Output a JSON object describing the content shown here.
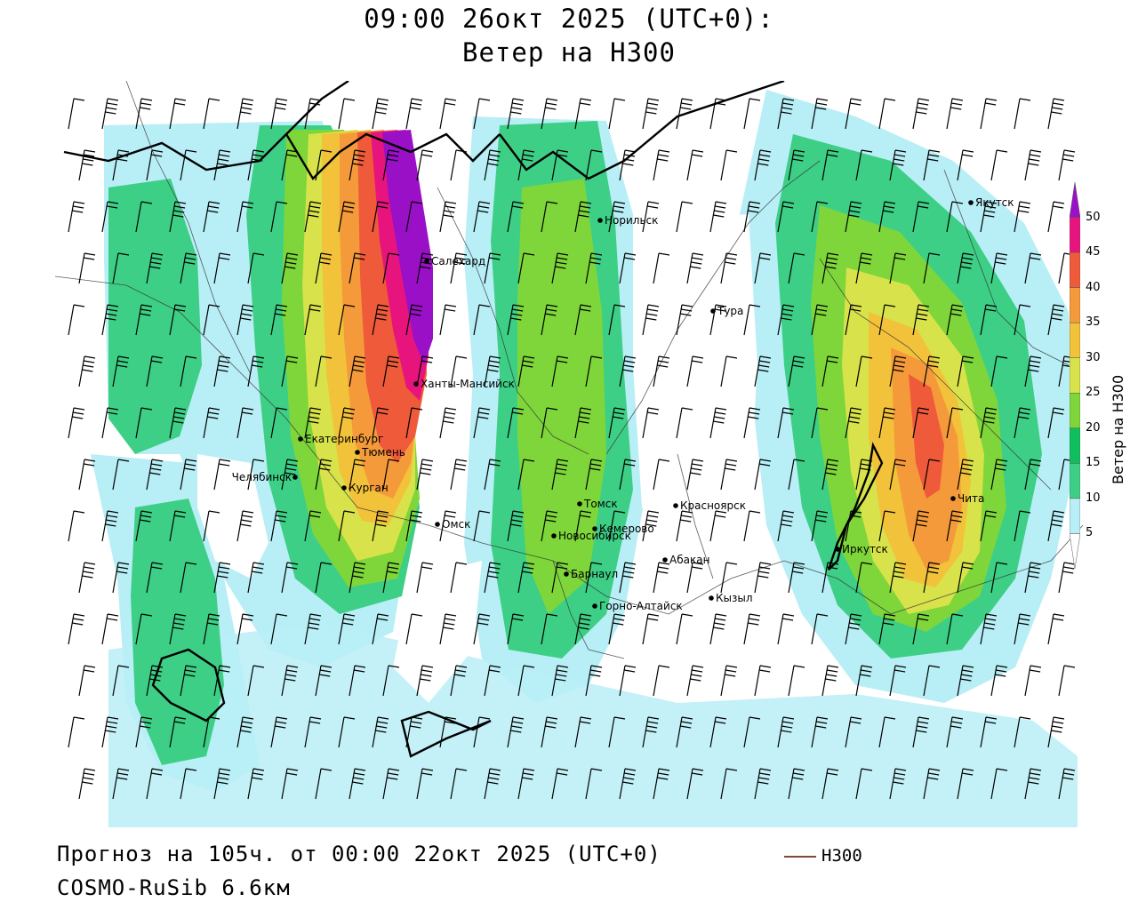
{
  "header": {
    "line1": "09:00 26окт 2025 (UTC+0):",
    "line2": "Ветер на H300"
  },
  "footer": {
    "line1": "Прогноз на 105ч. от 00:00 22окт 2025 (UTC+0)",
    "line2": "COSMO-RuSib 6.6км"
  },
  "legend": {
    "line_label": "H300",
    "line_color": "#7a4a3a"
  },
  "colorbar": {
    "label": "Ветер на H300",
    "ticks": [
      "5",
      "10",
      "15",
      "20",
      "25",
      "30",
      "35",
      "40",
      "45",
      "50"
    ],
    "colors": [
      "#ffffff",
      "#b8eef6",
      "#3ecf86",
      "#0fbf5e",
      "#7ed63a",
      "#d8e24a",
      "#f2c23a",
      "#f49a3a",
      "#ee5a3a",
      "#e8147e",
      "#9a10c6"
    ]
  },
  "cities": [
    {
      "name": "Норильск"
    },
    {
      "name": "Якутск"
    },
    {
      "name": "Салехард"
    },
    {
      "name": "Тура"
    },
    {
      "name": "Ханты-Мансийск"
    },
    {
      "name": "Екатеринбург"
    },
    {
      "name": "Тюмень"
    },
    {
      "name": "Челябинск"
    },
    {
      "name": "Курган"
    },
    {
      "name": "Омск"
    },
    {
      "name": "Томск"
    },
    {
      "name": "Красноярск"
    },
    {
      "name": "Новосибирск"
    },
    {
      "name": "Кемерово"
    },
    {
      "name": "Абакан"
    },
    {
      "name": "Барнаул"
    },
    {
      "name": "Кызыл"
    },
    {
      "name": "Горно-Алтайск"
    },
    {
      "name": "Иркутск"
    },
    {
      "name": "Чита"
    }
  ]
}
